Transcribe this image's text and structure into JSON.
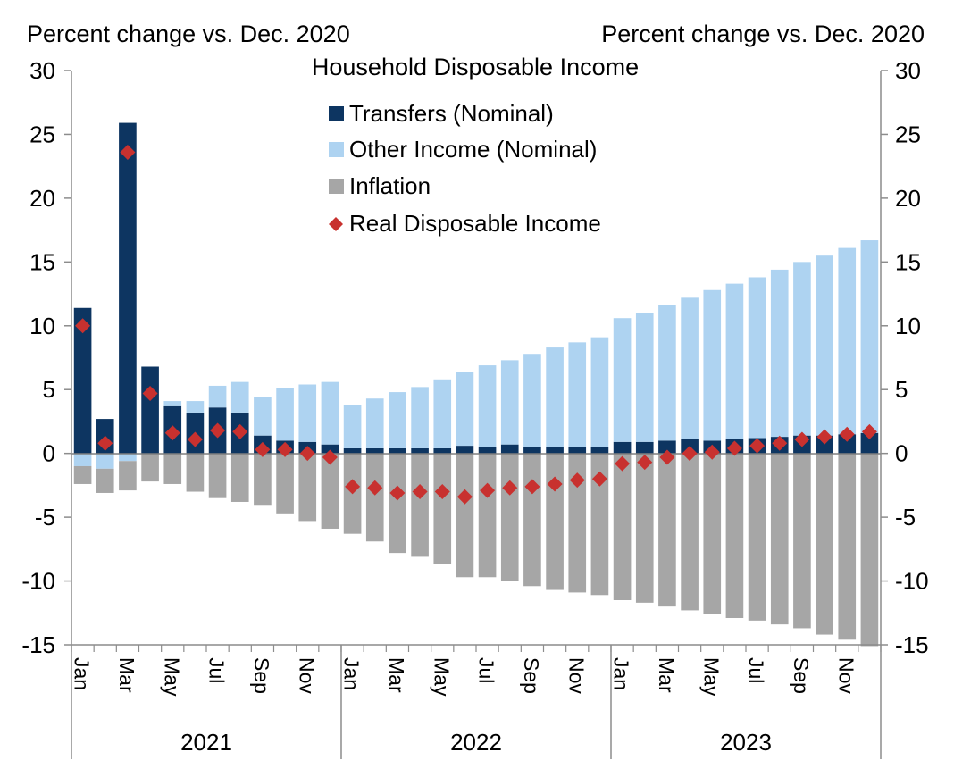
{
  "chart_data": {
    "type": "bar",
    "title": "Household Disposable Income",
    "left_axis_label": "Percent change vs. Dec. 2020",
    "right_axis_label": "Percent change vs. Dec. 2020",
    "ylim": [
      -15,
      30
    ],
    "yticks": [
      30,
      25,
      20,
      15,
      10,
      5,
      0,
      -5,
      -10,
      -15
    ],
    "years": [
      "2021",
      "2022",
      "2023"
    ],
    "month_tick_labels": [
      "Jan",
      "Mar",
      "May",
      "Jul",
      "Sep",
      "Nov",
      "Jan",
      "Mar",
      "May",
      "Jul",
      "Sep",
      "Nov",
      "Jan",
      "Mar",
      "May",
      "Jul",
      "Sep",
      "Nov"
    ],
    "categories": [
      "Jan 2021",
      "Feb 2021",
      "Mar 2021",
      "Apr 2021",
      "May 2021",
      "Jun 2021",
      "Jul 2021",
      "Aug 2021",
      "Sep 2021",
      "Oct 2021",
      "Nov 2021",
      "Dec 2021",
      "Jan 2022",
      "Feb 2022",
      "Mar 2022",
      "Apr 2022",
      "May 2022",
      "Jun 2022",
      "Jul 2022",
      "Aug 2022",
      "Sep 2022",
      "Oct 2022",
      "Nov 2022",
      "Dec 2022",
      "Jan 2023",
      "Feb 2023",
      "Mar 2023",
      "Apr 2023",
      "May 2023",
      "Jun 2023",
      "Jul 2023",
      "Aug 2023",
      "Sep 2023",
      "Oct 2023",
      "Nov 2023",
      "Dec 2023"
    ],
    "legend_placement": "top-center",
    "grid": false,
    "series": [
      {
        "name": "Transfers (Nominal)",
        "kind": "bar",
        "color": "#0d3561",
        "values": [
          11.4,
          2.7,
          25.9,
          6.8,
          3.7,
          3.2,
          3.6,
          3.2,
          1.4,
          1.0,
          0.9,
          0.7,
          0.4,
          0.4,
          0.4,
          0.4,
          0.4,
          0.6,
          0.5,
          0.7,
          0.5,
          0.5,
          0.5,
          0.5,
          0.9,
          0.9,
          1.0,
          1.1,
          1.0,
          1.1,
          1.2,
          1.3,
          1.4,
          1.4,
          1.5,
          1.6
        ]
      },
      {
        "name": "Other Income (Nominal)",
        "kind": "bar",
        "color": "#aed3f1",
        "values": [
          -1.0,
          -1.2,
          -0.6,
          0.0,
          0.4,
          0.9,
          1.7,
          2.4,
          3.0,
          4.1,
          4.5,
          4.9,
          3.4,
          3.9,
          4.4,
          4.8,
          5.4,
          5.8,
          6.4,
          6.6,
          7.3,
          7.8,
          8.2,
          8.6,
          9.7,
          10.1,
          10.6,
          11.1,
          11.8,
          12.2,
          12.6,
          13.1,
          13.6,
          14.1,
          14.6,
          15.1
        ]
      },
      {
        "name": "Inflation",
        "kind": "bar",
        "color": "#a6a6a6",
        "values": [
          -1.4,
          -1.9,
          -2.3,
          -2.2,
          -2.4,
          -3.0,
          -3.5,
          -3.8,
          -4.1,
          -4.7,
          -5.3,
          -5.9,
          -6.3,
          -6.9,
          -7.8,
          -8.1,
          -8.7,
          -9.7,
          -9.7,
          -10.0,
          -10.4,
          -10.7,
          -10.9,
          -11.1,
          -11.5,
          -11.7,
          -12.0,
          -12.3,
          -12.6,
          -12.9,
          -13.1,
          -13.4,
          -13.7,
          -14.2,
          -14.6,
          -15.1
        ]
      },
      {
        "name": "Real Disposable Income",
        "kind": "marker",
        "color": "#c8312f",
        "values": [
          10.0,
          0.8,
          23.6,
          4.7,
          1.6,
          1.1,
          1.8,
          1.7,
          0.3,
          0.3,
          0.0,
          -0.3,
          -2.6,
          -2.7,
          -3.1,
          -3.0,
          -3.0,
          -3.4,
          -2.9,
          -2.7,
          -2.6,
          -2.4,
          -2.1,
          -2.0,
          -0.8,
          -0.7,
          -0.3,
          0.0,
          0.1,
          0.4,
          0.6,
          0.8,
          1.1,
          1.3,
          1.5,
          1.7
        ]
      }
    ]
  }
}
